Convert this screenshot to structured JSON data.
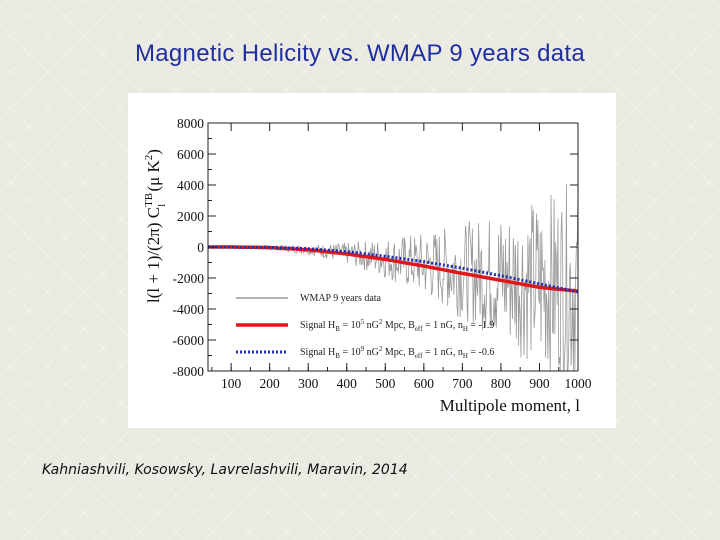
{
  "slide": {
    "title": "Magnetic Helicity vs. WMAP 9 years data",
    "citation": "Kahniashvili, Kosowsky, Lavrelashvili, Maravin, 2014"
  },
  "chart_data": {
    "type": "line",
    "xlabel": "Multipole moment, l",
    "ylabel": "l(l + 1)/(2π) C_l^TB (μ K²)",
    "xlim": [
      40,
      1000
    ],
    "ylim": [
      -8000,
      8000
    ],
    "x_ticks": [
      100,
      200,
      300,
      400,
      500,
      600,
      700,
      800,
      900,
      1000
    ],
    "y_ticks": [
      8000,
      6000,
      4000,
      2000,
      0,
      -2000,
      -4000,
      -6000,
      -8000
    ],
    "x_tick_labels": [
      "100",
      "200",
      "300",
      "400",
      "500",
      "600",
      "700",
      "800",
      "900",
      "1000"
    ],
    "y_tick_labels": [
      "8000",
      "6000",
      "4000",
      "2000",
      "0",
      "-2000",
      "-4000",
      "-6000",
      "-8000"
    ],
    "grid": false,
    "legend_position": "lower-left",
    "series": [
      {
        "name": "WMAP 9 years data",
        "color": "#9a9a9a",
        "style": "noisy",
        "x": [
          40,
          100,
          200,
          300,
          400,
          500,
          600,
          700,
          800,
          900,
          1000
        ],
        "amplitude": [
          20,
          60,
          150,
          320,
          700,
          1300,
          2100,
          3100,
          4300,
          5600,
          7000
        ]
      },
      {
        "name": "Signal H_B = 10^5 nG² Mpc, B_eff = 1 nG, n_H = -1.9",
        "color": "#e0161b",
        "style": "solid",
        "x": [
          40,
          100,
          200,
          300,
          400,
          500,
          600,
          700,
          800,
          900,
          1000
        ],
        "y": [
          0,
          0,
          -40,
          -180,
          -450,
          -800,
          -1230,
          -1700,
          -2150,
          -2600,
          -2850
        ]
      },
      {
        "name": "Signal H_B = 10^9 nG² Mpc, B_eff = 1 nG, n_H = -0.6",
        "color": "#1f2fb0",
        "style": "dotted",
        "x": [
          40,
          100,
          200,
          300,
          400,
          500,
          600,
          700,
          800,
          900,
          1000
        ],
        "y": [
          0,
          0,
          -25,
          -110,
          -300,
          -600,
          -950,
          -1370,
          -1850,
          -2380,
          -2900
        ]
      }
    ],
    "legend": {
      "wmap": "WMAP 9 years data",
      "s1_prefix": "Signal H",
      "s1_sub_B": "B",
      "s1_mid": " = 10",
      "s1_exp": "5",
      "s1_units": " nG",
      "s1_sq": "2",
      "s1_mpc": " Mpc, B",
      "s1_sub_eff": "eff",
      "s1_ng": " = 1 nG, n",
      "s1_sub_H": "H",
      "s1_tail": " = -1.9",
      "s2_prefix": "Signal H",
      "s2_sub_B": "B",
      "s2_mid": " = 10",
      "s2_exp": "9",
      "s2_units": " nG",
      "s2_sq": "2",
      "s2_mpc": " Mpc, B",
      "s2_sub_eff": "eff",
      "s2_ng": " = 1 nG, n",
      "s2_sub_H": "H",
      "s2_tail": " = -0.6"
    },
    "ylabel_parts": {
      "main": "l(l + 1)/(2π) C",
      "sup": "TB",
      "sub": "l",
      "units": " (μ K",
      "units_sq": "2",
      "units_close": ")"
    }
  }
}
